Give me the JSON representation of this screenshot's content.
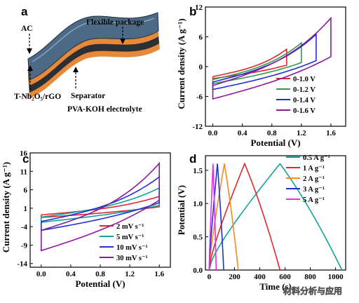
{
  "panels": {
    "a": {
      "letter": "a",
      "labels": {
        "flexible_package": "Flexible package",
        "ac": "AC",
        "electrode": "T-Nb₂O₅/rGO",
        "separator": "Separator",
        "electrolyte": "PVA-KOH electrolyte"
      }
    },
    "b": {
      "letter": "b"
    },
    "c": {
      "letter": "c"
    },
    "d": {
      "letter": "d"
    }
  },
  "watermark": "材料分析与应用",
  "chart_data": [
    {
      "id": "b",
      "type": "line",
      "xlabel": "Potential (V)",
      "ylabel": "Current density (A g⁻¹)",
      "xlim": [
        -0.1,
        1.8
      ],
      "ylim": [
        -12,
        12
      ],
      "xticks": [
        0.0,
        0.4,
        0.8,
        1.2,
        1.6
      ],
      "yticks": [
        -12,
        -6,
        0,
        6,
        12
      ],
      "legend_position": "bottom-right",
      "series": [
        {
          "name": "0-1.0 V",
          "color": "#e0262f",
          "vmax": 1.0,
          "i_top": 3.5,
          "i_top_low": -2.0,
          "i_bot_low": -2.4,
          "i_bot_high": 0.3
        },
        {
          "name": "0-1.2 V",
          "color": "#2e9e45",
          "vmax": 1.2,
          "i_top": 4.8,
          "i_top_low": -2.6,
          "i_bot_low": -3.4,
          "i_bot_high": 0.8
        },
        {
          "name": "0-1.4 V",
          "color": "#1f2fd6",
          "vmax": 1.4,
          "i_top": 6.5,
          "i_top_low": -3.1,
          "i_bot_low": -4.6,
          "i_bot_high": 1.2
        },
        {
          "name": "0-1.6 V",
          "color": "#8b1a9b",
          "vmax": 1.6,
          "i_top": 9.8,
          "i_top_low": -3.8,
          "i_bot_low": -6.5,
          "i_bot_high": 2.0
        }
      ]
    },
    {
      "id": "c",
      "type": "line",
      "xlabel": "Potential (V)",
      "ylabel": "Current density (A g⁻¹)",
      "xlim": [
        -0.15,
        1.75
      ],
      "ylim": [
        -15,
        16
      ],
      "xticks": [
        0.0,
        0.4,
        0.8,
        1.2,
        1.6
      ],
      "yticks": [
        -14,
        -9,
        -4,
        1,
        6,
        11,
        16
      ],
      "legend_position": "bottom-right",
      "series": [
        {
          "name": "2 mV s⁻¹",
          "color": "#e0262f",
          "vmax": 1.6,
          "i_top": 4.2,
          "i_top_low": -0.8,
          "i_bot_low": -1.5,
          "i_bot_high": 1.4
        },
        {
          "name": "5 mV s⁻¹",
          "color": "#11a39a",
          "vmax": 1.6,
          "i_top": 6.5,
          "i_top_low": -1.4,
          "i_bot_low": -2.8,
          "i_bot_high": 1.8
        },
        {
          "name": "10 mV s⁻¹",
          "color": "#1f2fd6",
          "vmax": 1.6,
          "i_top": 9.5,
          "i_top_low": -2.6,
          "i_bot_low": -5.0,
          "i_bot_high": 2.5
        },
        {
          "name": "30 mV s⁻¹",
          "color": "#8b1a9b",
          "vmax": 1.6,
          "i_top": 13.2,
          "i_top_low": -5.0,
          "i_bot_low": -10.5,
          "i_bot_high": 3.2
        }
      ]
    },
    {
      "id": "d",
      "type": "line",
      "xlabel": "Time (s)",
      "ylabel": "Potential (V)",
      "xlim": [
        -30,
        1080
      ],
      "ylim": [
        0.0,
        1.72
      ],
      "xticks": [
        0,
        200,
        400,
        600,
        800,
        1000
      ],
      "yticks": [
        0.0,
        0.5,
        1.0,
        1.5
      ],
      "legend_position": "top-right",
      "series": [
        {
          "name": "0.5 A g⁻¹",
          "color": "#11a39a",
          "t_charge": 560,
          "t_end": 1050
        },
        {
          "name": "1 A g⁻¹",
          "color": "#e0262f",
          "t_charge": 280,
          "t_end": 560
        },
        {
          "name": "2 A g⁻¹",
          "color": "#f08c1c",
          "t_charge": 120,
          "t_end": 230
        },
        {
          "name": "3 A g⁻¹",
          "color": "#1f2fd6",
          "t_charge": 65,
          "t_end": 115
        },
        {
          "name": "5 A g⁻¹",
          "color": "#e62ce6",
          "t_charge": 30,
          "t_end": 55
        }
      ]
    }
  ]
}
